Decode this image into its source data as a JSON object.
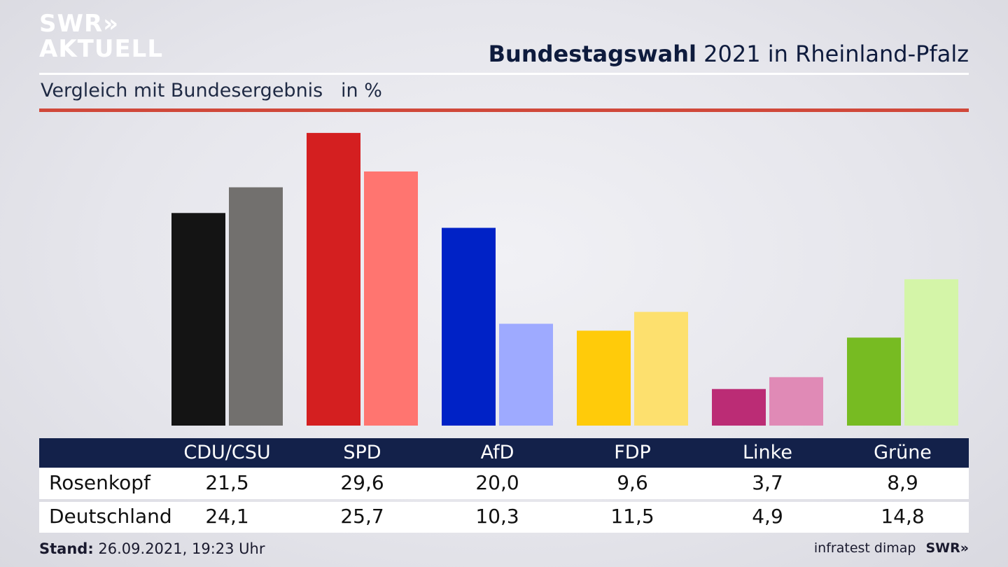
{
  "brand": {
    "line1": "SWR»",
    "line2": "AKTUELL"
  },
  "header": {
    "title_bold": "Bundestagswahl",
    "title_rest": " 2021 in Rheinland-Pfalz"
  },
  "subtitle": "Vergleich mit Bundesergebnis   in %",
  "footer": {
    "stand_label": "Stand:",
    "stand_value": " 26.09.2021, 19:23 Uhr",
    "source": "infratest dimap",
    "logo": "SWR»"
  },
  "chart_data": {
    "type": "bar",
    "categories": [
      "CDU/CSU",
      "SPD",
      "AfD",
      "FDP",
      "Linke",
      "Grüne"
    ],
    "series": [
      {
        "name": "Rosenkopf",
        "values": [
          21.5,
          29.6,
          20.0,
          9.6,
          3.7,
          8.9
        ],
        "labels": [
          "21,5",
          "29,6",
          "20,0",
          "9,6",
          "3,7",
          "8,9"
        ]
      },
      {
        "name": "Deutschland",
        "values": [
          24.1,
          25.7,
          10.3,
          11.5,
          4.9,
          14.8
        ],
        "labels": [
          "24,1",
          "25,7",
          "10,3",
          "11,5",
          "4,9",
          "14,8"
        ]
      }
    ],
    "colors": {
      "Rosenkopf": [
        "#141414",
        "#d41f20",
        "#0022c6",
        "#ffcb0a",
        "#bb2c75",
        "#77bb22"
      ],
      "Deutschland": [
        "#72706e",
        "#ff7570",
        "#9eaaff",
        "#fde06e",
        "#e08ab6",
        "#d4f5a8"
      ]
    },
    "ylim": [
      0,
      30
    ]
  }
}
